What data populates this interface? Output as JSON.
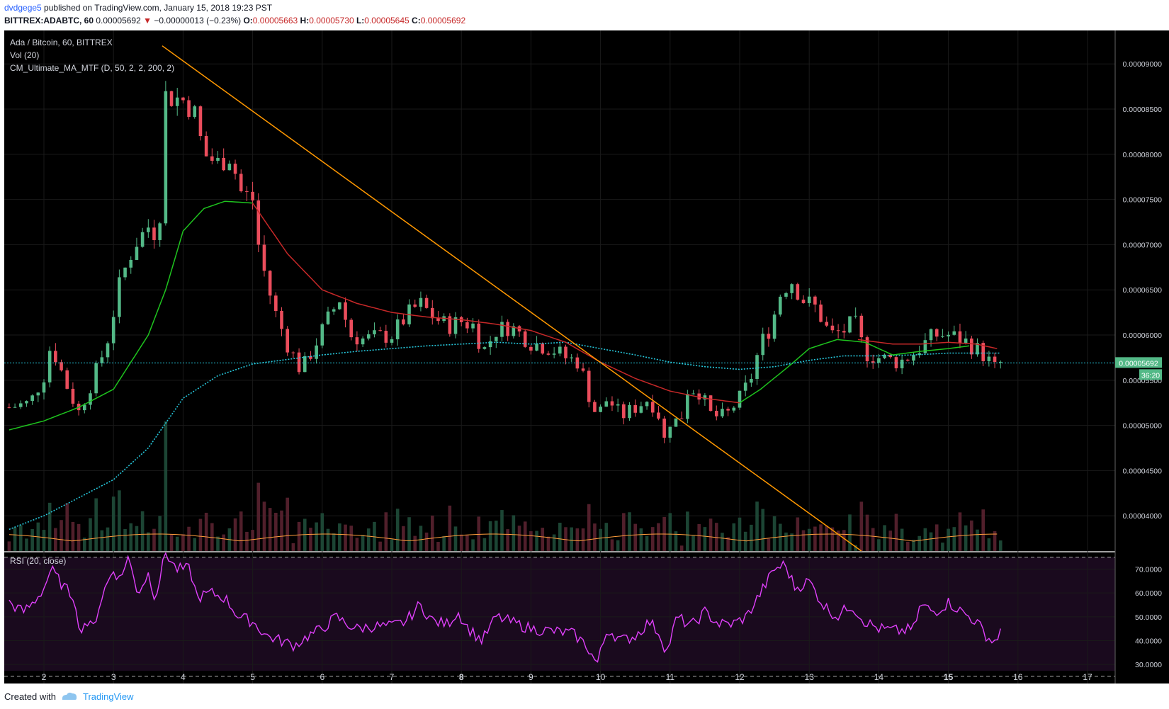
{
  "header": {
    "author": "dvdgege5",
    "published_text": " published on TradingView.com, January 15, 2018 19:23 PST"
  },
  "ohlc": {
    "symbol": "BITTREX:ADABTC, 60",
    "last": "0.00005692",
    "arrow": "▼",
    "change": "−0.00000013 (−0.23%)",
    "o_label": "O:",
    "o": "0.00005663",
    "h_label": "H:",
    "h": "0.00005730",
    "l_label": "L:",
    "l": "0.00005645",
    "c_label": "C:",
    "c": "0.00005692"
  },
  "legend": {
    "line1": "Ada / Bitcoin, 60, BITTREX",
    "line2": "Vol (20)",
    "line3": "CM_Ultimate_MA_MTF (D, 50, 2, 2, 200, 2)",
    "rsi": "RSI (20, close)"
  },
  "price_badge": "0.00005692",
  "countdown": "36:20",
  "footer": {
    "created": "Created with",
    "brand": "TradingView"
  },
  "colors": {
    "background": "#000000",
    "up": "#53b987",
    "down": "#eb4d5c",
    "ma_fast": "#1ec31e",
    "ma_slow": "#c62828",
    "ma_200": "#26c6da",
    "trendline": "#ff9800",
    "rsi": "#e040fb",
    "rsi_band": "#1a0a1e",
    "vol_ma": "#ff9d3c"
  },
  "chart_data": [
    {
      "type": "candlestick",
      "title": "Ada / Bitcoin, 60, BITTREX",
      "x_ticks": [
        "2",
        "3",
        "4",
        "5",
        "6",
        "7",
        "8",
        "9",
        "10",
        "11",
        "12",
        "13",
        "14",
        "15",
        "16",
        "17"
      ],
      "y_ticks": [
        "0.00004000",
        "0.00004500",
        "0.00005000",
        "0.00005500",
        "0.00006000",
        "0.00006500",
        "0.00007000",
        "0.00007500",
        "0.00008000",
        "0.00008500",
        "0.00009000"
      ],
      "ylim": [
        3.61e-05,
        9.37e-05
      ],
      "last_price": 5.692e-05,
      "close_keypoints": [
        [
          1.5,
          5.2e-05
        ],
        [
          1.8,
          5.25e-05
        ],
        [
          2.0,
          5.55e-05
        ],
        [
          2.1,
          5.9e-05
        ],
        [
          2.35,
          5.4e-05
        ],
        [
          2.5,
          5.15e-05
        ],
        [
          2.7,
          5.5e-05
        ],
        [
          2.9,
          5.9e-05
        ],
        [
          3.1,
          6.6e-05
        ],
        [
          3.3,
          7e-05
        ],
        [
          3.5,
          7.2e-05
        ],
        [
          3.65,
          7.1e-05
        ],
        [
          3.75,
          8.65e-05
        ],
        [
          4.0,
          8.6e-05
        ],
        [
          4.15,
          8.5e-05
        ],
        [
          4.3,
          8e-05
        ],
        [
          4.5,
          7.9e-05
        ],
        [
          4.7,
          8e-05
        ],
        [
          4.8,
          7.6e-05
        ],
        [
          5.0,
          7.5e-05
        ],
        [
          5.1,
          6.9e-05
        ],
        [
          5.3,
          6.3e-05
        ],
        [
          5.5,
          5.9e-05
        ],
        [
          5.7,
          5.6e-05
        ],
        [
          5.9,
          5.9e-05
        ],
        [
          6.1,
          6.2e-05
        ],
        [
          6.25,
          6.4e-05
        ],
        [
          6.4,
          6e-05
        ],
        [
          6.6,
          5.95e-05
        ],
        [
          6.8,
          5.98e-05
        ],
        [
          7.0,
          6e-05
        ],
        [
          7.2,
          6.2e-05
        ],
        [
          7.4,
          6.35e-05
        ],
        [
          7.6,
          6.2e-05
        ],
        [
          7.8,
          6.1e-05
        ],
        [
          8.0,
          6.15e-05
        ],
        [
          8.2,
          6.1e-05
        ],
        [
          8.3,
          5.8e-05
        ],
        [
          8.5,
          6.05e-05
        ],
        [
          8.7,
          6.1e-05
        ],
        [
          9.0,
          5.92e-05
        ],
        [
          9.3,
          5.85e-05
        ],
        [
          9.5,
          5.75e-05
        ],
        [
          9.7,
          5.7e-05
        ],
        [
          9.8,
          5.4e-05
        ],
        [
          9.95,
          5.1e-05
        ],
        [
          10.1,
          5.3e-05
        ],
        [
          10.3,
          5.1e-05
        ],
        [
          10.5,
          5.2e-05
        ],
        [
          10.7,
          5.3e-05
        ],
        [
          10.85,
          5.1e-05
        ],
        [
          10.9,
          4.8e-05
        ],
        [
          11.0,
          5.05e-05
        ],
        [
          11.15,
          5.05e-05
        ],
        [
          11.25,
          5.4e-05
        ],
        [
          11.4,
          5.4e-05
        ],
        [
          11.6,
          5.1e-05
        ],
        [
          11.8,
          5.1e-05
        ],
        [
          12.0,
          5.3e-05
        ],
        [
          12.15,
          5.5e-05
        ],
        [
          12.3,
          5.9e-05
        ],
        [
          12.45,
          6.1e-05
        ],
        [
          12.6,
          6.5e-05
        ],
        [
          12.75,
          6.6e-05
        ],
        [
          12.9,
          6.4e-05
        ],
        [
          13.1,
          6.3e-05
        ],
        [
          13.3,
          6e-05
        ],
        [
          13.5,
          6.05e-05
        ],
        [
          13.65,
          6.15e-05
        ],
        [
          13.8,
          5.8e-05
        ],
        [
          14.0,
          5.75e-05
        ],
        [
          14.3,
          5.7e-05
        ],
        [
          14.5,
          5.8e-05
        ],
        [
          14.65,
          5.9e-05
        ],
        [
          14.8,
          6e-05
        ],
        [
          15.0,
          6e-05
        ],
        [
          15.2,
          5.95e-05
        ],
        [
          15.4,
          5.85e-05
        ],
        [
          15.55,
          5.75e-05
        ],
        [
          15.65,
          5.62e-05
        ],
        [
          15.75,
          5.69e-05
        ]
      ],
      "ma_fast_keypoints": [
        [
          1.5,
          4.95e-05
        ],
        [
          2.0,
          5.05e-05
        ],
        [
          2.5,
          5.2e-05
        ],
        [
          3.0,
          5.4e-05
        ],
        [
          3.5,
          6e-05
        ],
        [
          3.75,
          6.5e-05
        ],
        [
          4.0,
          7.15e-05
        ],
        [
          4.3,
          7.4e-05
        ],
        [
          4.6,
          7.48e-05
        ],
        [
          5.0,
          7.46e-05
        ]
      ],
      "ma_slow_keypoints": [
        [
          5.0,
          7.46e-05
        ],
        [
          5.5,
          6.9e-05
        ],
        [
          6.0,
          6.5e-05
        ],
        [
          6.5,
          6.35e-05
        ],
        [
          7.0,
          6.25e-05
        ],
        [
          7.5,
          6.2e-05
        ],
        [
          8.0,
          6.17e-05
        ],
        [
          8.5,
          6.12e-05
        ],
        [
          9.0,
          6.05e-05
        ],
        [
          9.5,
          5.92e-05
        ],
        [
          10.0,
          5.7e-05
        ],
        [
          10.5,
          5.52e-05
        ],
        [
          11.0,
          5.38e-05
        ],
        [
          11.5,
          5.3e-05
        ],
        [
          12.0,
          5.25e-05
        ]
      ],
      "ma_fast_keypoints_2": [
        [
          12.0,
          5.25e-05
        ],
        [
          12.3,
          5.4e-05
        ],
        [
          12.7,
          5.65e-05
        ],
        [
          13.0,
          5.85e-05
        ],
        [
          13.4,
          5.95e-05
        ],
        [
          13.8,
          5.92e-05
        ],
        [
          14.2,
          5.78e-05
        ],
        [
          14.6,
          5.82e-05
        ],
        [
          15.0,
          5.85e-05
        ],
        [
          15.3,
          5.88e-05
        ]
      ],
      "ma_slow_keypoints_2": [
        [
          13.7,
          5.95e-05
        ],
        [
          14.2,
          5.9e-05
        ],
        [
          14.6,
          5.9e-05
        ],
        [
          15.0,
          5.92e-05
        ],
        [
          15.4,
          5.9e-05
        ],
        [
          15.7,
          5.85e-05
        ]
      ],
      "ma_200_keypoints": [
        [
          1.5,
          3.85e-05
        ],
        [
          2.0,
          4e-05
        ],
        [
          2.5,
          4.2e-05
        ],
        [
          3.0,
          4.4e-05
        ],
        [
          3.5,
          4.75e-05
        ],
        [
          4.0,
          5.3e-05
        ],
        [
          4.5,
          5.55e-05
        ],
        [
          5.0,
          5.68e-05
        ],
        [
          5.5,
          5.73e-05
        ],
        [
          6.0,
          5.78e-05
        ],
        [
          6.5,
          5.82e-05
        ],
        [
          7.0,
          5.85e-05
        ],
        [
          7.5,
          5.88e-05
        ],
        [
          8.0,
          5.9e-05
        ],
        [
          8.5,
          5.92e-05
        ],
        [
          9.0,
          5.9e-05
        ],
        [
          9.5,
          5.92e-05
        ],
        [
          10.0,
          5.85e-05
        ],
        [
          10.5,
          5.78e-05
        ],
        [
          11.0,
          5.7e-05
        ],
        [
          11.5,
          5.65e-05
        ],
        [
          12.0,
          5.62e-05
        ],
        [
          12.5,
          5.65e-05
        ],
        [
          13.0,
          5.72e-05
        ],
        [
          13.5,
          5.77e-05
        ],
        [
          14.0,
          5.77e-05
        ],
        [
          14.5,
          5.78e-05
        ],
        [
          15.0,
          5.8e-05
        ],
        [
          15.75,
          5.8e-05
        ]
      ],
      "trendline": [
        [
          3.7,
          9.2e-05
        ],
        [
          13.75,
          3.61e-05
        ]
      ]
    },
    {
      "type": "line",
      "title": "RSI (20, close)",
      "y_ticks": [
        "30.0000",
        "40.0000",
        "50.0000",
        "60.0000",
        "70.0000"
      ],
      "ylim": [
        22,
        77
      ],
      "bands": [
        25,
        75
      ],
      "keypoints": [
        [
          1.5,
          56
        ],
        [
          1.7,
          52
        ],
        [
          1.85,
          56
        ],
        [
          2.0,
          62
        ],
        [
          2.1,
          70
        ],
        [
          2.3,
          62
        ],
        [
          2.45,
          58
        ],
        [
          2.5,
          44
        ],
        [
          2.6,
          48
        ],
        [
          2.7,
          45
        ],
        [
          2.85,
          60
        ],
        [
          3.0,
          70
        ],
        [
          3.1,
          65
        ],
        [
          3.2,
          76
        ],
        [
          3.35,
          60
        ],
        [
          3.5,
          68
        ],
        [
          3.6,
          58
        ],
        [
          3.75,
          77
        ],
        [
          3.9,
          70
        ],
        [
          4.1,
          70
        ],
        [
          4.2,
          58
        ],
        [
          4.4,
          60
        ],
        [
          4.6,
          58
        ],
        [
          4.8,
          50
        ],
        [
          5.0,
          48
        ],
        [
          5.2,
          42
        ],
        [
          5.4,
          40
        ],
        [
          5.6,
          38
        ],
        [
          5.8,
          42
        ],
        [
          6.0,
          45
        ],
        [
          6.2,
          50
        ],
        [
          6.35,
          47
        ],
        [
          6.5,
          45
        ],
        [
          6.7,
          46
        ],
        [
          7.0,
          46
        ],
        [
          7.2,
          48
        ],
        [
          7.4,
          55
        ],
        [
          7.6,
          48
        ],
        [
          7.8,
          47
        ],
        [
          7.95,
          52
        ],
        [
          8.1,
          45
        ],
        [
          8.3,
          40
        ],
        [
          8.5,
          50
        ],
        [
          8.7,
          48
        ],
        [
          9.0,
          45
        ],
        [
          9.3,
          44
        ],
        [
          9.6,
          43
        ],
        [
          9.8,
          38
        ],
        [
          9.95,
          30
        ],
        [
          10.1,
          45
        ],
        [
          10.3,
          40
        ],
        [
          10.5,
          42
        ],
        [
          10.7,
          48
        ],
        [
          10.85,
          43
        ],
        [
          10.95,
          35
        ],
        [
          11.1,
          50
        ],
        [
          11.3,
          46
        ],
        [
          11.5,
          52
        ],
        [
          11.7,
          47
        ],
        [
          11.9,
          47
        ],
        [
          12.1,
          50
        ],
        [
          12.3,
          60
        ],
        [
          12.5,
          70
        ],
        [
          12.65,
          72
        ],
        [
          12.8,
          62
        ],
        [
          13.0,
          65
        ],
        [
          13.2,
          55
        ],
        [
          13.4,
          50
        ],
        [
          13.6,
          55
        ],
        [
          13.8,
          48
        ],
        [
          14.0,
          45
        ],
        [
          14.3,
          44
        ],
        [
          14.5,
          45
        ],
        [
          14.6,
          55
        ],
        [
          14.8,
          52
        ],
        [
          15.0,
          56
        ],
        [
          15.2,
          52
        ],
        [
          15.4,
          48
        ],
        [
          15.55,
          42
        ],
        [
          15.65,
          39
        ],
        [
          15.75,
          44
        ]
      ]
    },
    {
      "type": "bar",
      "title": "Vol (20)",
      "note": "volume histogram behind price pane, relative heights"
    }
  ]
}
